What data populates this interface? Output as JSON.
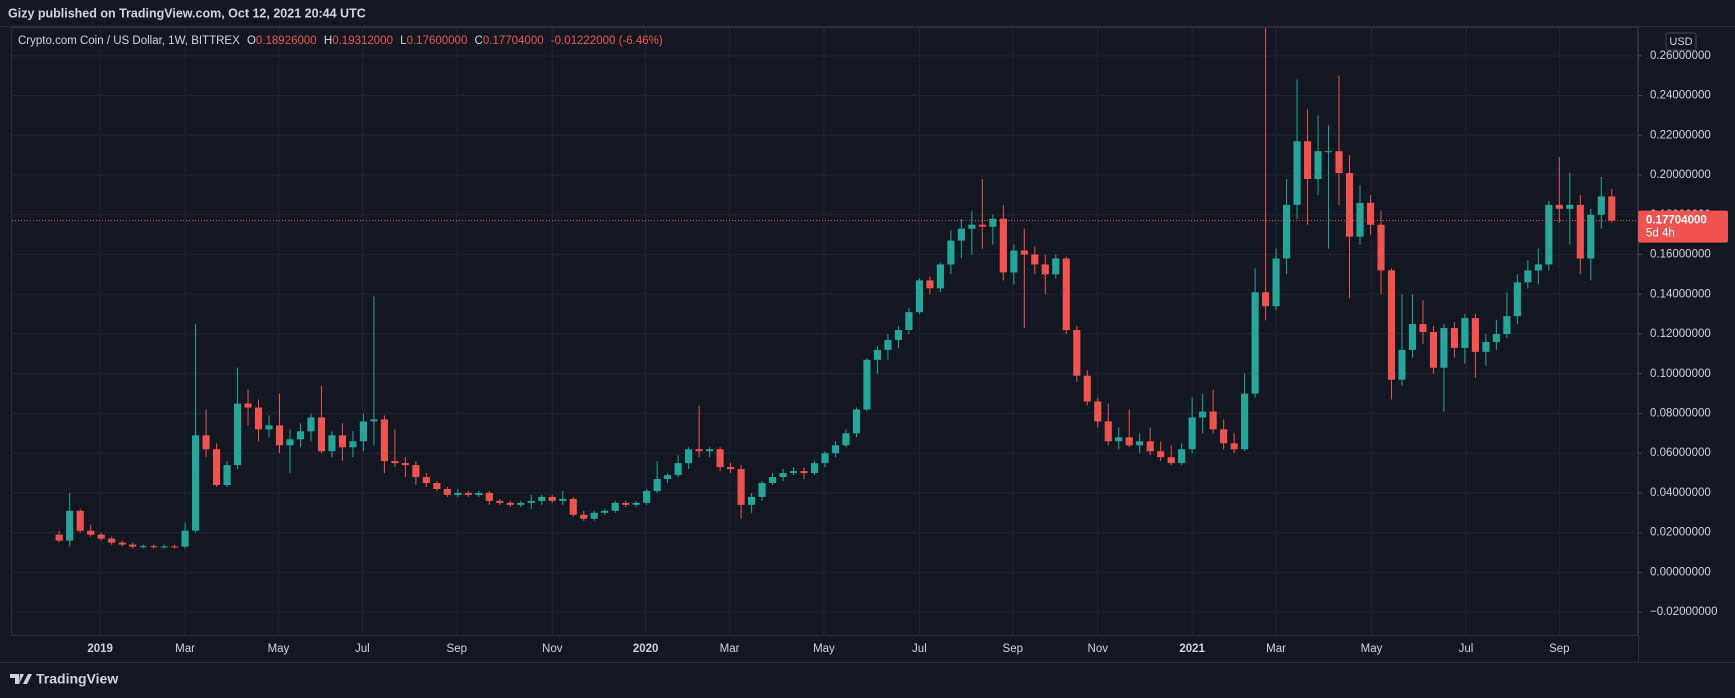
{
  "header": {
    "published": "Gizy published on TradingView.com, Oct 12, 2021 20:44 UTC"
  },
  "chart_data": {
    "type": "candlestick",
    "legend": {
      "symbol": "Crypto.com Coin / US Dollar, 1W, BITTREX",
      "open_label": "O",
      "open": "0.18926000",
      "high_label": "H",
      "high": "0.19312000",
      "low_label": "L",
      "low": "0.17600000",
      "close_label": "C",
      "close": "0.17704000",
      "change": "-0.01222000 (-6.46%)"
    },
    "currency": "USD",
    "up_color": "#26a69a",
    "down_color": "#ef5350",
    "grid": true,
    "ohlc": [
      [
        0.019,
        0.021,
        0.015,
        0.016
      ],
      [
        0.016,
        0.04,
        0.013,
        0.031
      ],
      [
        0.031,
        0.032,
        0.02,
        0.021
      ],
      [
        0.021,
        0.024,
        0.018,
        0.019
      ],
      [
        0.019,
        0.02,
        0.016,
        0.017
      ],
      [
        0.017,
        0.018,
        0.014,
        0.015
      ],
      [
        0.015,
        0.016,
        0.013,
        0.014
      ],
      [
        0.014,
        0.015,
        0.012,
        0.013
      ],
      [
        0.013,
        0.014,
        0.012,
        0.0132
      ],
      [
        0.0132,
        0.014,
        0.012,
        0.0128
      ],
      [
        0.0128,
        0.014,
        0.012,
        0.0131
      ],
      [
        0.0131,
        0.014,
        0.012,
        0.013
      ],
      [
        0.013,
        0.025,
        0.012,
        0.021
      ],
      [
        0.021,
        0.125,
        0.02,
        0.069
      ],
      [
        0.069,
        0.082,
        0.058,
        0.062
      ],
      [
        0.062,
        0.065,
        0.043,
        0.044
      ],
      [
        0.044,
        0.056,
        0.043,
        0.054
      ],
      [
        0.054,
        0.103,
        0.052,
        0.085
      ],
      [
        0.085,
        0.092,
        0.074,
        0.083
      ],
      [
        0.083,
        0.087,
        0.066,
        0.072
      ],
      [
        0.072,
        0.079,
        0.068,
        0.074
      ],
      [
        0.074,
        0.09,
        0.06,
        0.064
      ],
      [
        0.064,
        0.072,
        0.05,
        0.067
      ],
      [
        0.067,
        0.075,
        0.063,
        0.071
      ],
      [
        0.071,
        0.08,
        0.066,
        0.078
      ],
      [
        0.078,
        0.094,
        0.06,
        0.061
      ],
      [
        0.061,
        0.071,
        0.058,
        0.069
      ],
      [
        0.069,
        0.075,
        0.056,
        0.063
      ],
      [
        0.063,
        0.071,
        0.058,
        0.066
      ],
      [
        0.066,
        0.08,
        0.061,
        0.076
      ],
      [
        0.076,
        0.139,
        0.064,
        0.077
      ],
      [
        0.077,
        0.079,
        0.05,
        0.056
      ],
      [
        0.056,
        0.072,
        0.053,
        0.055
      ],
      [
        0.055,
        0.058,
        0.048,
        0.054
      ],
      [
        0.054,
        0.056,
        0.044,
        0.048
      ],
      [
        0.048,
        0.05,
        0.043,
        0.045
      ],
      [
        0.045,
        0.046,
        0.041,
        0.042
      ],
      [
        0.042,
        0.043,
        0.038,
        0.039
      ],
      [
        0.039,
        0.042,
        0.038,
        0.04
      ],
      [
        0.04,
        0.041,
        0.038,
        0.039
      ],
      [
        0.039,
        0.041,
        0.038,
        0.04
      ],
      [
        0.04,
        0.041,
        0.034,
        0.036
      ],
      [
        0.036,
        0.037,
        0.034,
        0.035
      ],
      [
        0.035,
        0.036,
        0.033,
        0.034
      ],
      [
        0.034,
        0.036,
        0.033,
        0.035
      ],
      [
        0.035,
        0.039,
        0.032,
        0.036
      ],
      [
        0.036,
        0.039,
        0.034,
        0.038
      ],
      [
        0.038,
        0.039,
        0.035,
        0.036
      ],
      [
        0.036,
        0.041,
        0.034,
        0.037
      ],
      [
        0.037,
        0.038,
        0.028,
        0.029
      ],
      [
        0.029,
        0.031,
        0.026,
        0.027
      ],
      [
        0.027,
        0.031,
        0.026,
        0.03
      ],
      [
        0.03,
        0.032,
        0.029,
        0.031
      ],
      [
        0.031,
        0.036,
        0.03,
        0.035
      ],
      [
        0.035,
        0.036,
        0.033,
        0.034
      ],
      [
        0.034,
        0.036,
        0.033,
        0.035
      ],
      [
        0.035,
        0.042,
        0.034,
        0.041
      ],
      [
        0.041,
        0.056,
        0.04,
        0.047
      ],
      [
        0.047,
        0.05,
        0.045,
        0.049
      ],
      [
        0.049,
        0.059,
        0.048,
        0.055
      ],
      [
        0.055,
        0.063,
        0.052,
        0.062
      ],
      [
        0.062,
        0.084,
        0.058,
        0.061
      ],
      [
        0.061,
        0.063,
        0.058,
        0.062
      ],
      [
        0.062,
        0.063,
        0.051,
        0.053
      ],
      [
        0.053,
        0.055,
        0.05,
        0.052
      ],
      [
        0.052,
        0.054,
        0.027,
        0.034
      ],
      [
        0.034,
        0.04,
        0.03,
        0.038
      ],
      [
        0.038,
        0.046,
        0.036,
        0.045
      ],
      [
        0.045,
        0.05,
        0.044,
        0.048
      ],
      [
        0.048,
        0.052,
        0.046,
        0.05
      ],
      [
        0.05,
        0.053,
        0.049,
        0.051
      ],
      [
        0.051,
        0.053,
        0.047,
        0.05
      ],
      [
        0.05,
        0.056,
        0.049,
        0.055
      ],
      [
        0.055,
        0.061,
        0.053,
        0.06
      ],
      [
        0.06,
        0.066,
        0.058,
        0.064
      ],
      [
        0.064,
        0.072,
        0.063,
        0.07
      ],
      [
        0.07,
        0.083,
        0.068,
        0.082
      ],
      [
        0.082,
        0.108,
        0.081,
        0.107
      ],
      [
        0.107,
        0.114,
        0.1,
        0.112
      ],
      [
        0.112,
        0.12,
        0.107,
        0.117
      ],
      [
        0.117,
        0.124,
        0.113,
        0.122
      ],
      [
        0.122,
        0.133,
        0.12,
        0.131
      ],
      [
        0.131,
        0.148,
        0.13,
        0.147
      ],
      [
        0.147,
        0.149,
        0.14,
        0.143
      ],
      [
        0.143,
        0.156,
        0.141,
        0.155
      ],
      [
        0.155,
        0.172,
        0.15,
        0.167
      ],
      [
        0.167,
        0.178,
        0.158,
        0.173
      ],
      [
        0.173,
        0.182,
        0.16,
        0.175
      ],
      [
        0.175,
        0.198,
        0.163,
        0.174
      ],
      [
        0.174,
        0.18,
        0.165,
        0.178
      ],
      [
        0.178,
        0.185,
        0.147,
        0.151
      ],
      [
        0.151,
        0.165,
        0.145,
        0.162
      ],
      [
        0.162,
        0.173,
        0.123,
        0.16
      ],
      [
        0.16,
        0.164,
        0.15,
        0.155
      ],
      [
        0.155,
        0.16,
        0.14,
        0.15
      ],
      [
        0.15,
        0.16,
        0.148,
        0.158
      ],
      [
        0.158,
        0.159,
        0.12,
        0.122
      ],
      [
        0.122,
        0.124,
        0.096,
        0.099
      ],
      [
        0.099,
        0.102,
        0.084,
        0.086
      ],
      [
        0.086,
        0.088,
        0.073,
        0.076
      ],
      [
        0.076,
        0.085,
        0.064,
        0.066
      ],
      [
        0.066,
        0.073,
        0.062,
        0.068
      ],
      [
        0.068,
        0.082,
        0.063,
        0.064
      ],
      [
        0.064,
        0.07,
        0.06,
        0.066
      ],
      [
        0.066,
        0.073,
        0.059,
        0.061
      ],
      [
        0.061,
        0.066,
        0.056,
        0.058
      ],
      [
        0.058,
        0.064,
        0.054,
        0.055
      ],
      [
        0.055,
        0.065,
        0.054,
        0.062
      ],
      [
        0.062,
        0.088,
        0.06,
        0.078
      ],
      [
        0.078,
        0.09,
        0.07,
        0.081
      ],
      [
        0.081,
        0.092,
        0.07,
        0.072
      ],
      [
        0.072,
        0.077,
        0.062,
        0.065
      ],
      [
        0.065,
        0.07,
        0.06,
        0.062
      ],
      [
        0.062,
        0.1,
        0.061,
        0.09
      ],
      [
        0.09,
        0.153,
        0.088,
        0.141
      ],
      [
        0.141,
        0.274,
        0.127,
        0.134
      ],
      [
        0.134,
        0.163,
        0.132,
        0.158
      ],
      [
        0.158,
        0.198,
        0.15,
        0.185
      ],
      [
        0.185,
        0.248,
        0.178,
        0.217
      ],
      [
        0.217,
        0.233,
        0.175,
        0.198
      ],
      [
        0.198,
        0.23,
        0.19,
        0.212
      ],
      [
        0.212,
        0.225,
        0.163,
        0.212
      ],
      [
        0.212,
        0.25,
        0.185,
        0.201
      ],
      [
        0.201,
        0.21,
        0.138,
        0.169
      ],
      [
        0.169,
        0.195,
        0.165,
        0.186
      ],
      [
        0.186,
        0.19,
        0.17,
        0.175
      ],
      [
        0.175,
        0.182,
        0.14,
        0.152
      ],
      [
        0.152,
        0.153,
        0.087,
        0.097
      ],
      [
        0.097,
        0.14,
        0.094,
        0.112
      ],
      [
        0.112,
        0.14,
        0.108,
        0.125
      ],
      [
        0.125,
        0.137,
        0.115,
        0.121
      ],
      [
        0.121,
        0.124,
        0.1,
        0.103
      ],
      [
        0.103,
        0.125,
        0.081,
        0.123
      ],
      [
        0.123,
        0.126,
        0.108,
        0.113
      ],
      [
        0.113,
        0.13,
        0.105,
        0.128
      ],
      [
        0.128,
        0.13,
        0.098,
        0.111
      ],
      [
        0.111,
        0.12,
        0.104,
        0.116
      ],
      [
        0.116,
        0.127,
        0.112,
        0.12
      ],
      [
        0.12,
        0.141,
        0.118,
        0.129
      ],
      [
        0.129,
        0.15,
        0.125,
        0.146
      ],
      [
        0.146,
        0.157,
        0.143,
        0.152
      ],
      [
        0.152,
        0.163,
        0.145,
        0.155
      ],
      [
        0.155,
        0.187,
        0.152,
        0.185
      ],
      [
        0.185,
        0.209,
        0.176,
        0.183
      ],
      [
        0.183,
        0.201,
        0.165,
        0.185
      ],
      [
        0.185,
        0.19,
        0.15,
        0.158
      ],
      [
        0.158,
        0.183,
        0.147,
        0.18
      ],
      [
        0.18,
        0.199,
        0.173,
        0.18926
      ],
      [
        0.18926,
        0.19312,
        0.176,
        0.17704
      ]
    ],
    "last_price": {
      "value": 0.17704,
      "label": "0.17704000",
      "countdown": "5d 4h"
    },
    "xlim": [
      -4.5,
      150.5
    ],
    "xticks": [
      {
        "value": 3.9,
        "label": "2019"
      },
      {
        "value": 12.0,
        "label": "Mar"
      },
      {
        "value": 20.9,
        "label": "May"
      },
      {
        "value": 28.9,
        "label": "Jul"
      },
      {
        "value": 37.9,
        "label": "Sep"
      },
      {
        "value": 47.0,
        "label": "Nov"
      },
      {
        "value": 55.9,
        "label": "2020"
      },
      {
        "value": 63.9,
        "label": "Mar"
      },
      {
        "value": 72.9,
        "label": "May"
      },
      {
        "value": 82.0,
        "label": "Jul"
      },
      {
        "value": 90.9,
        "label": "Sep"
      },
      {
        "value": 99.0,
        "label": "Nov"
      },
      {
        "value": 108.0,
        "label": "2021"
      },
      {
        "value": 116.0,
        "label": "Mar"
      },
      {
        "value": 125.1,
        "label": "May"
      },
      {
        "value": 134.1,
        "label": "Jul"
      },
      {
        "value": 143.0,
        "label": "Sep"
      }
    ],
    "ylim": [
      -0.032,
      0.274
    ],
    "yticks": [
      {
        "value": -0.02,
        "label": "−0.02000000"
      },
      {
        "value": 0,
        "label": "0.00000000"
      },
      {
        "value": 0.02,
        "label": "0.02000000"
      },
      {
        "value": 0.04,
        "label": "0.04000000"
      },
      {
        "value": 0.06,
        "label": "0.06000000"
      },
      {
        "value": 0.08,
        "label": "0.08000000"
      },
      {
        "value": 0.1,
        "label": "0.10000000"
      },
      {
        "value": 0.12,
        "label": "0.12000000"
      },
      {
        "value": 0.14,
        "label": "0.14000000"
      },
      {
        "value": 0.16,
        "label": "0.16000000"
      },
      {
        "value": 0.18,
        "label": "0.18000000"
      },
      {
        "value": 0.2,
        "label": "0.20000000"
      },
      {
        "value": 0.22,
        "label": "0.22000000"
      },
      {
        "value": 0.24,
        "label": "0.24000000"
      },
      {
        "value": 0.26,
        "label": "0.26000000"
      }
    ]
  },
  "footer": {
    "brand": "TradingView"
  }
}
